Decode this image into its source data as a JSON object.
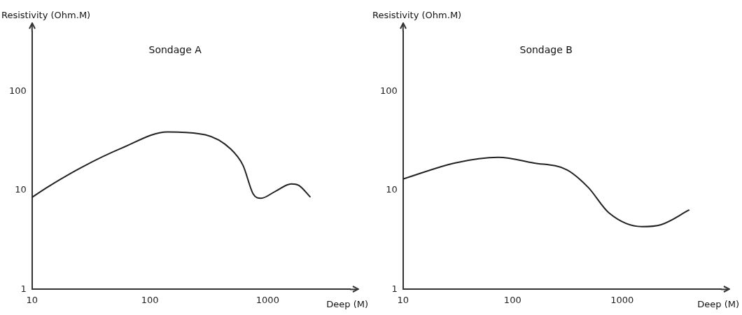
{
  "chart_data": [
    {
      "type": "line",
      "title": "Sondage A",
      "xlabel": "Deep (M)",
      "ylabel": "Resistivity (Ohm.M)",
      "log": "xy",
      "marker": "none",
      "xlim": [
        10,
        5000
      ],
      "ylim": [
        1,
        400
      ],
      "xticks": [
        10,
        100,
        1000
      ],
      "yticks": [
        1,
        10,
        100
      ],
      "series": [
        {
          "color": "#222222",
          "x": [
            10,
            13.6,
            26,
            58,
            141,
            295,
            483,
            618,
            753,
            876,
            1170,
            1585,
            1840,
            2290
          ],
          "values": [
            8.5,
            10.8,
            16.9,
            26.7,
            38.8,
            36.3,
            26.2,
            17.8,
            9.2,
            8.3,
            9.8,
            11.6,
            11.2,
            8.6
          ]
        }
      ]
    },
    {
      "type": "line",
      "title": "Sondage B",
      "xlabel": "Deep (M)",
      "ylabel": "Resistivity (Ohm.M)",
      "log": "xy",
      "marker": "none",
      "xlim": [
        10,
        8000
      ],
      "ylim": [
        1,
        400
      ],
      "xticks": [
        10,
        100,
        1000
      ],
      "yticks": [
        1,
        10,
        100
      ],
      "series": [
        {
          "color": "#222222",
          "x": [
            10,
            30,
            74,
            155,
            313,
            490,
            760,
            1510,
            2270,
            4070
          ],
          "values": [
            13,
            18.9,
            21.5,
            18.9,
            16.1,
            10.7,
            5.9,
            4.3,
            4.5,
            6.3
          ]
        }
      ]
    }
  ]
}
